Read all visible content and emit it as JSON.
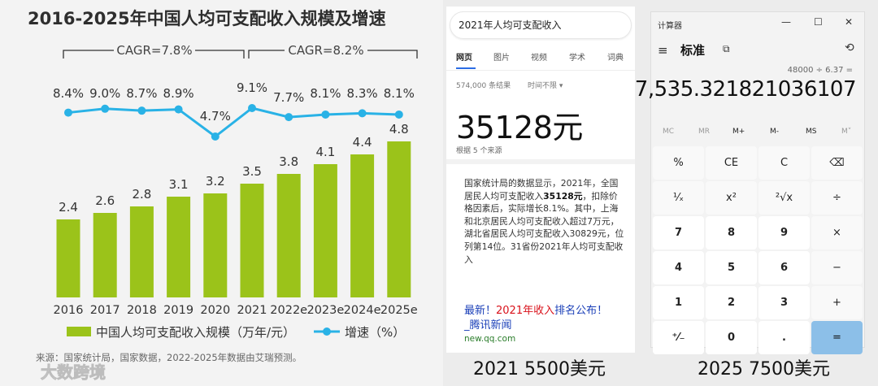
{
  "chart": {
    "title": "2016-2025年中国人均可支配收入规模及增速",
    "cagr": [
      {
        "label": "CAGR=7.8%"
      },
      {
        "label": "CAGR=8.2%"
      }
    ],
    "legend": {
      "bar": "中国人均可支配收入规模（万年/元）",
      "line": "增速（%）"
    },
    "source": "来源：国家统计局，国家数据，2022-2025年数据由艾瑞预测。",
    "watermark": "大数跨境",
    "colors": {
      "bar": "#9bc31a",
      "line": "#29b2e6"
    }
  },
  "chart_data": {
    "type": "bar",
    "title": "2016-2025年中国人均可支配收入规模及增速",
    "categories": [
      "2016",
      "2017",
      "2018",
      "2019",
      "2020",
      "2021",
      "2022e",
      "2023e",
      "2024e",
      "2025e"
    ],
    "series": [
      {
        "name": "中国人均可支配收入规模（万年/元）",
        "type": "bar",
        "values": [
          2.4,
          2.6,
          2.8,
          3.1,
          3.2,
          3.5,
          3.8,
          4.1,
          4.4,
          4.8
        ],
        "labels": [
          "2.4",
          "2.6",
          "2.8",
          "3.1",
          "3.2",
          "3.5",
          "3.8",
          "4.1",
          "4.4",
          "4.8"
        ]
      },
      {
        "name": "增速（%）",
        "type": "line",
        "values": [
          8.4,
          9.0,
          8.7,
          8.9,
          4.7,
          9.1,
          7.7,
          8.1,
          8.3,
          8.1
        ],
        "labels": [
          "8.4%",
          "9.0%",
          "8.7%",
          "8.9%",
          "4.7%",
          "9.1%",
          "7.7%",
          "8.1%",
          "8.3%",
          "8.1%"
        ]
      }
    ],
    "annotations": [
      "CAGR=7.8%",
      "CAGR=8.2%"
    ],
    "legend_position": "bottom",
    "grid": false
  },
  "search": {
    "query": "2021年人均可支配收入",
    "tabs": [
      "网页",
      "图片",
      "视频",
      "学术",
      "词典"
    ],
    "result_count": "574,000 条结果",
    "time_filter": "时间不限",
    "time_filter_arrow": "▾",
    "answer": "35128元",
    "answer_source": "根据 5 个来源",
    "snippet_1": "国家统计局的数据显示，2021年，全国居民人均可支配收入",
    "snippet_bold": "35128元",
    "snippet_2": "，扣除价格因素后，实际增长8.1%。其中，上海和北京居民人均可支配收入超过7万元，湖北省居民人均可支配收入30829元，位列第14位。31省份2021年人均可支配收入",
    "news_a": "最新！",
    "news_b": "2021年收入",
    "news_c": "排名公布！",
    "news_d": "_腾讯新闻",
    "news_url": "new.qq.com"
  },
  "calculator": {
    "window_title": "计算器",
    "minimize": "—",
    "maximize": "☐",
    "close": "✕",
    "menu_icon": "≡",
    "mode": "标准",
    "mode_icon": "⧉",
    "history_icon": "⟲",
    "expression": "48000 ÷ 6.37 =",
    "display": "7,535.321821036107",
    "memory": [
      "MC",
      "MR",
      "M+",
      "M-",
      "MS",
      "M˅"
    ],
    "keys": [
      [
        "%",
        "CE",
        "C",
        "⌫"
      ],
      [
        "¹⁄ₓ",
        "x²",
        "²√x",
        "÷"
      ],
      [
        "7",
        "8",
        "9",
        "×"
      ],
      [
        "4",
        "5",
        "6",
        "−"
      ],
      [
        "1",
        "2",
        "3",
        "+"
      ],
      [
        "⁺⁄₋",
        "0",
        ".",
        "="
      ]
    ]
  },
  "captions": {
    "left": "2021 5500美元",
    "right": "2025 7500美元"
  }
}
